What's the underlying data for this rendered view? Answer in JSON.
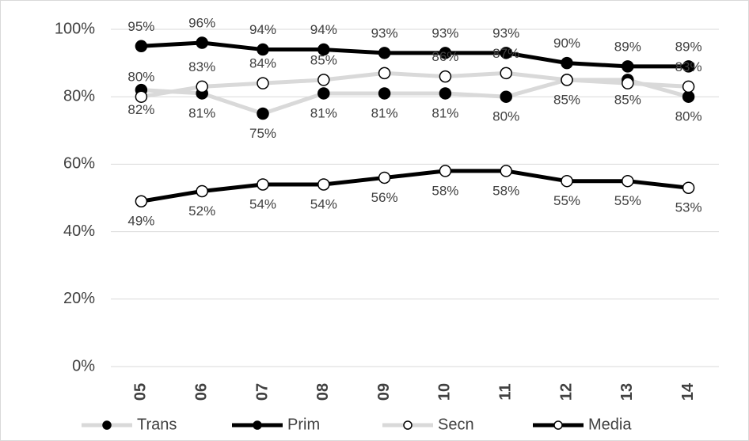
{
  "chart_data": {
    "type": "line",
    "categories": [
      "05",
      "06",
      "07",
      "08",
      "09",
      "10",
      "11",
      "12",
      "13",
      "14"
    ],
    "ylim": [
      0,
      100
    ],
    "yticks": [
      {
        "value": 0,
        "label": "0%"
      },
      {
        "value": 20,
        "label": "20%"
      },
      {
        "value": 40,
        "label": "40%"
      },
      {
        "value": 60,
        "label": "60%"
      },
      {
        "value": 80,
        "label": "80%"
      },
      {
        "value": 100,
        "label": "100%"
      }
    ],
    "grid": true,
    "legend": "bottom",
    "series": [
      {
        "name": "Trans",
        "color": "#d9d9d9",
        "marker_fill": "#000000",
        "label_pos": "below",
        "values": [
          82,
          81,
          75,
          81,
          81,
          81,
          80,
          85,
          85,
          80
        ],
        "value_labels": [
          "82%",
          "81%",
          "75%",
          "81%",
          "81%",
          "81%",
          "80%",
          "85%",
          "85%",
          "80%"
        ]
      },
      {
        "name": "Prim",
        "color": "#000000",
        "marker_fill": "#000000",
        "label_pos": "above",
        "values": [
          95,
          96,
          94,
          94,
          93,
          93,
          93,
          90,
          89,
          89
        ],
        "value_labels": [
          "95%",
          "96%",
          "94%",
          "94%",
          "93%",
          "93%",
          "93%",
          "90%",
          "89%",
          "89%"
        ]
      },
      {
        "name": "Secn",
        "color": "#d9d9d9",
        "marker_fill": "#ffffff",
        "label_pos": "above",
        "values": [
          80,
          83,
          84,
          85,
          87,
          86,
          87,
          85,
          84,
          83
        ],
        "value_labels": [
          "80%",
          "83%",
          "84%",
          "85%",
          null,
          "86%",
          "87%",
          null,
          null,
          "83%"
        ]
      },
      {
        "name": "Media",
        "color": "#000000",
        "marker_fill": "#ffffff",
        "label_pos": "below",
        "values": [
          49,
          52,
          54,
          54,
          56,
          58,
          58,
          55,
          55,
          53
        ],
        "value_labels": [
          "49%",
          "52%",
          "54%",
          "54%",
          "56%",
          "58%",
          "58%",
          "55%",
          "55%",
          "53%"
        ]
      }
    ]
  }
}
